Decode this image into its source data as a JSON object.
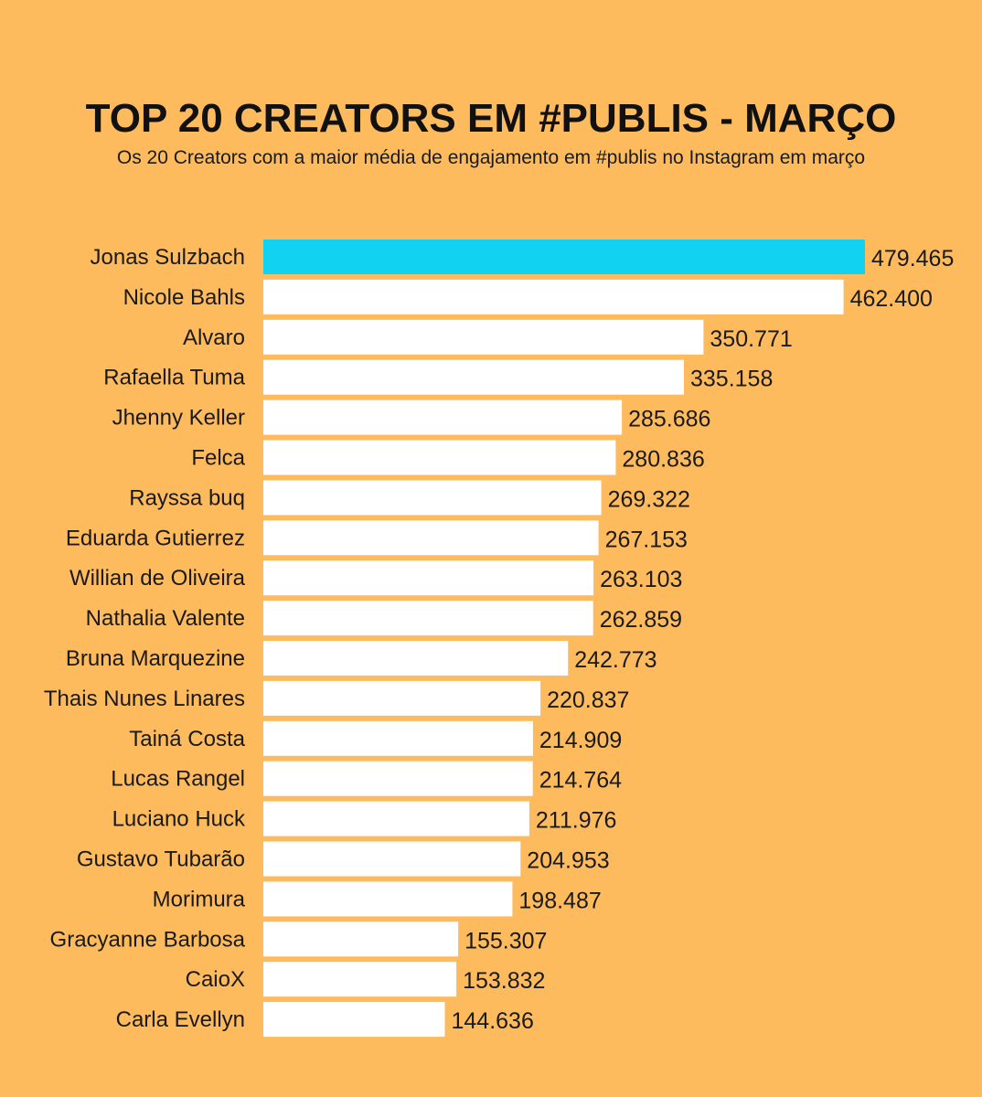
{
  "title": "TOP 20 CREATORS EM #PUBLIS - MARÇO",
  "subtitle": "Os 20 Creators com a maior média de engajamento em #publis no Instagram em março",
  "colors": {
    "background": "#FDBB5E",
    "highlight_bar": "#12D2F2",
    "bar": "#FFFFFF"
  },
  "chart_data": {
    "type": "bar",
    "orientation": "horizontal",
    "title": "TOP 20 CREATORS EM #PUBLIS - MARÇO",
    "subtitle": "Os 20 Creators com a maior média de engajamento em #publis no Instagram em março",
    "xlabel": "",
    "ylabel": "",
    "grid": false,
    "highlight_index": 0,
    "categories": [
      "Jonas Sulzbach",
      "Nicole Bahls",
      "Alvaro",
      "Rafaella Tuma",
      "Jhenny Keller",
      "Felca",
      "Rayssa buq",
      "Eduarda Gutierrez",
      "Willian de Oliveira",
      "Nathalia Valente",
      "Bruna Marquezine",
      "Thais Nunes Linares",
      "Tainá Costa",
      "Lucas Rangel",
      "Luciano Huck",
      "Gustavo Tubarão",
      "Morimura",
      "Gracyanne Barbosa",
      "CaioX",
      "Carla Evellyn"
    ],
    "values": [
      479465,
      462400,
      350771,
      335158,
      285686,
      280836,
      269322,
      267153,
      263103,
      262859,
      242773,
      220837,
      214909,
      214764,
      211976,
      204953,
      198487,
      155307,
      153832,
      144636
    ],
    "value_labels": [
      "479.465",
      "462.400",
      "350.771",
      "335.158",
      "285.686",
      "280.836",
      "269.322",
      "267.153",
      "263.103",
      "262.859",
      "242.773",
      "220.837",
      "214.909",
      "214.764",
      "211.976",
      "204.953",
      "198.487",
      "155.307",
      "153.832",
      "144.636"
    ]
  }
}
